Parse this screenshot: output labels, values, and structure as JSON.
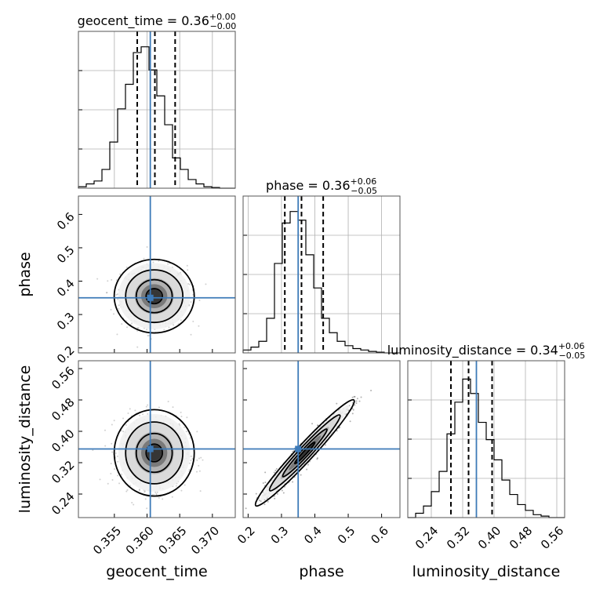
{
  "chart_data": {
    "type": "corner",
    "parameters": [
      "geocent_time",
      "phase",
      "luminosity_distance"
    ],
    "titles": [
      {
        "param": "geocent_time",
        "text": "geocent_time = 0.36",
        "plus": "+0.00",
        "minus": "−0.00"
      },
      {
        "param": "phase",
        "text": "phase = 0.36",
        "plus": "+0.06",
        "minus": "−0.05"
      },
      {
        "param": "luminosity_distance",
        "text": "luminosity_distance = 0.34",
        "plus": "+0.06",
        "minus": "−0.05"
      }
    ],
    "truths": {
      "geocent_time": 0.3605,
      "phase": 0.35,
      "luminosity_distance": 0.355
    },
    "axes": {
      "geocent_time": {
        "range": [
          0.3495,
          0.3735
        ],
        "ticks": [
          0.355,
          0.36,
          0.365,
          0.37
        ],
        "tick_labels": [
          "0.355",
          "0.360",
          "0.365",
          "0.370"
        ]
      },
      "phase": {
        "range": [
          0.185,
          0.655
        ],
        "ticks": [
          0.2,
          0.3,
          0.4,
          0.5,
          0.6
        ],
        "tick_labels": [
          "0.2",
          "0.3",
          "0.4",
          "0.5",
          "0.6"
        ]
      },
      "luminosity_distance": {
        "range": [
          0.18,
          0.58
        ],
        "ticks": [
          0.24,
          0.32,
          0.4,
          0.48,
          0.56
        ],
        "tick_labels": [
          "0.24",
          "0.32",
          "0.40",
          "0.48",
          "0.56"
        ]
      }
    },
    "marginals": {
      "geocent_time": {
        "quantiles": [
          0.3585,
          0.3612,
          0.3643
        ],
        "edges": [
          0.3495,
          0.3507,
          0.3519,
          0.3531,
          0.3543,
          0.3555,
          0.3567,
          0.3579,
          0.3591,
          0.3603,
          0.3615,
          0.3627,
          0.3639,
          0.3651,
          0.3663,
          0.3675,
          0.3687,
          0.3699,
          0.3711,
          0.3723,
          0.3735
        ],
        "counts": [
          0.01,
          0.03,
          0.05,
          0.13,
          0.32,
          0.55,
          0.72,
          0.94,
          0.98,
          0.82,
          0.64,
          0.44,
          0.21,
          0.13,
          0.06,
          0.03,
          0.01,
          0.005,
          0.0,
          0.0
        ]
      },
      "phase": {
        "quantiles": [
          0.31,
          0.36,
          0.425
        ],
        "edges": [
          0.185,
          0.2085,
          0.232,
          0.2555,
          0.279,
          0.3025,
          0.326,
          0.3495,
          0.373,
          0.3965,
          0.42,
          0.4435,
          0.467,
          0.4905,
          0.514,
          0.5375,
          0.561,
          0.5845,
          0.608,
          0.6315,
          0.655
        ],
        "counts": [
          0.02,
          0.04,
          0.08,
          0.24,
          0.62,
          0.9,
          0.98,
          0.92,
          0.68,
          0.45,
          0.24,
          0.14,
          0.08,
          0.05,
          0.03,
          0.02,
          0.01,
          0.005,
          0.0,
          0.0
        ]
      },
      "luminosity_distance": {
        "quantiles": [
          0.29,
          0.335,
          0.395
        ],
        "edges": [
          0.18,
          0.2,
          0.22,
          0.24,
          0.26,
          0.28,
          0.3,
          0.32,
          0.34,
          0.36,
          0.38,
          0.4,
          0.42,
          0.44,
          0.46,
          0.48,
          0.5,
          0.52,
          0.54,
          0.56,
          0.58
        ],
        "counts": [
          0.0,
          0.03,
          0.08,
          0.18,
          0.32,
          0.58,
          0.8,
          0.96,
          0.86,
          0.66,
          0.54,
          0.4,
          0.26,
          0.16,
          0.09,
          0.05,
          0.02,
          0.01,
          0.0,
          0.0
        ]
      }
    },
    "joint": {
      "phase|geocent_time": {
        "center": [
          0.3611,
          0.355
        ],
        "spread": [
          0.0025,
          0.045
        ],
        "rho": 0.0
      },
      "luminosity_distance|geocent_time": {
        "center": [
          0.3611,
          0.345
        ],
        "spread": [
          0.0025,
          0.045
        ],
        "rho": 0.0
      },
      "luminosity_distance|phase": {
        "center": [
          0.37,
          0.345
        ],
        "spread": [
          0.06,
          0.055
        ],
        "rho": 0.96
      }
    }
  }
}
